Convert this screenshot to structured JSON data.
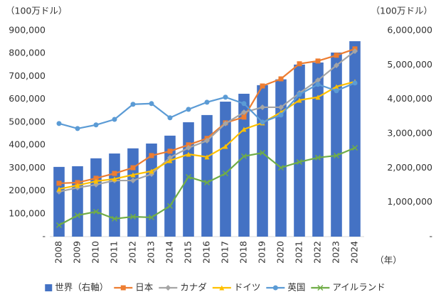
{
  "chart_data": {
    "type": "bar",
    "y_label": "（100万ドル）",
    "y2_label": "（100万ドル）",
    "x_label": "（年）",
    "categories": [
      "2008",
      "2009",
      "2010",
      "2011",
      "2012",
      "2013",
      "2014",
      "2015",
      "2016",
      "2017",
      "2018",
      "2019",
      "2020",
      "2021",
      "2022",
      "2023",
      "2024"
    ],
    "series": [
      {
        "name": "世界（右軸）",
        "type": "bar",
        "axis": "y2",
        "color": "#4472c4",
        "values": [
          2030000,
          2050000,
          2280000,
          2420000,
          2570000,
          2710000,
          2940000,
          3330000,
          3540000,
          3930000,
          4160000,
          4410000,
          4580000,
          5010000,
          5070000,
          5360000,
          5690000
        ]
      },
      {
        "name": "日本",
        "type": "line",
        "marker": "square",
        "color": "#ed7d31",
        "values": [
          233000,
          236000,
          255000,
          276000,
          301000,
          354000,
          373000,
          401000,
          429000,
          497000,
          522000,
          658000,
          689000,
          755000,
          767000,
          792000,
          820000
        ]
      },
      {
        "name": "カナダ",
        "type": "line",
        "marker": "diamond",
        "color": "#a5a5a5",
        "values": [
          196000,
          214000,
          227000,
          245000,
          245000,
          273000,
          345000,
          388000,
          419000,
          494000,
          543000,
          565000,
          565000,
          627000,
          683000,
          748000,
          810000
        ]
      },
      {
        "name": "ドイツ",
        "type": "line",
        "marker": "triangle",
        "color": "#ffc000",
        "values": [
          208000,
          224000,
          242000,
          252000,
          270000,
          286000,
          332000,
          360000,
          348000,
          394000,
          469000,
          497000,
          543000,
          596000,
          609000,
          655000,
          677000
        ]
      },
      {
        "name": "英国",
        "type": "line",
        "marker": "circle",
        "color": "#5b9bd5",
        "values": [
          494000,
          472000,
          488000,
          512000,
          578000,
          581000,
          519000,
          556000,
          587000,
          609000,
          581000,
          500000,
          531000,
          621000,
          665000,
          637000,
          671000
        ]
      },
      {
        "name": "アイルランド",
        "type": "line",
        "marker": "x",
        "color": "#70ad47",
        "values": [
          50000,
          93000,
          109000,
          78000,
          87000,
          84000,
          134000,
          261000,
          236000,
          276000,
          351000,
          366000,
          301000,
          326000,
          345000,
          354000,
          388000
        ]
      }
    ],
    "ylim": [
      0,
      900000
    ],
    "yticks": [
      {
        "value": 0,
        "label": "-"
      },
      {
        "value": 100000,
        "label": "100,000"
      },
      {
        "value": 200000,
        "label": "200,000"
      },
      {
        "value": 300000,
        "label": "300,000"
      },
      {
        "value": 400000,
        "label": "400,000"
      },
      {
        "value": 500000,
        "label": "500,000"
      },
      {
        "value": 600000,
        "label": "600,000"
      },
      {
        "value": 700000,
        "label": "700,000"
      },
      {
        "value": 800000,
        "label": "800,000"
      },
      {
        "value": 900000,
        "label": "900,000"
      }
    ],
    "y2lim": [
      0,
      6000000
    ],
    "y2ticks": [
      {
        "value": 0,
        "label": "-"
      },
      {
        "value": 1000000,
        "label": "1,000,000"
      },
      {
        "value": 2000000,
        "label": "2,000,000"
      },
      {
        "value": 3000000,
        "label": "3,000,000"
      },
      {
        "value": 4000000,
        "label": "4,000,000"
      },
      {
        "value": 5000000,
        "label": "5,000,000"
      },
      {
        "value": 6000000,
        "label": "6,000,000"
      }
    ],
    "legend": "bottom"
  }
}
